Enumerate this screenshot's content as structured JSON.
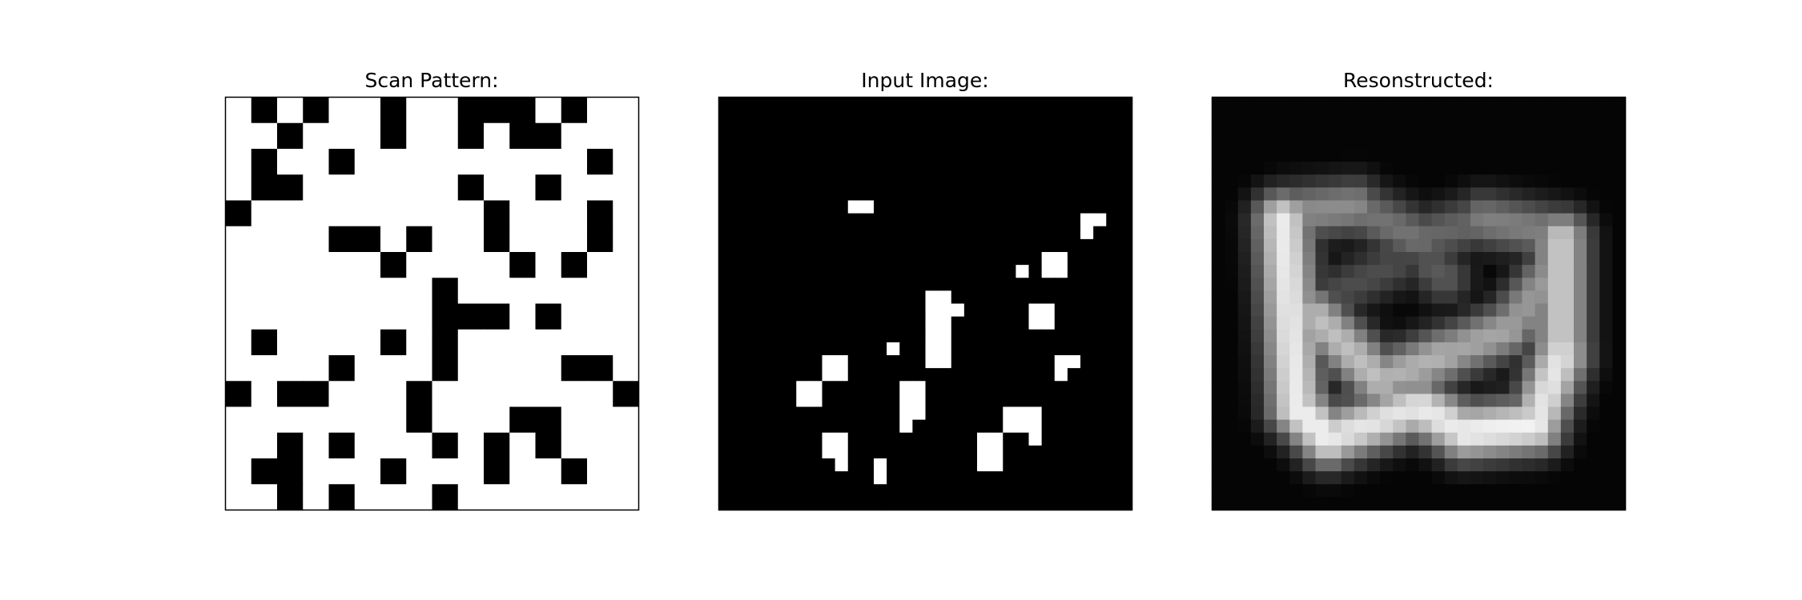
{
  "figure": {
    "background": "#ffffff"
  },
  "chart_data": [
    {
      "type": "heatmap",
      "title": "Scan Pattern:",
      "colormap": "gray",
      "grid": false,
      "axes": "hidden",
      "resolution": [
        16,
        16
      ],
      "on_value": 1,
      "off_value": 0,
      "cells": [
        [
          1,
          0,
          1,
          0,
          1,
          1,
          0,
          1,
          1,
          0,
          0,
          0,
          1,
          0,
          1,
          1
        ],
        [
          1,
          1,
          0,
          1,
          1,
          1,
          0,
          1,
          1,
          0,
          1,
          0,
          0,
          1,
          1,
          1
        ],
        [
          1,
          0,
          1,
          1,
          0,
          1,
          1,
          1,
          1,
          1,
          1,
          1,
          1,
          1,
          0,
          1
        ],
        [
          1,
          0,
          0,
          1,
          1,
          1,
          1,
          1,
          1,
          0,
          1,
          1,
          0,
          1,
          1,
          1
        ],
        [
          0,
          1,
          1,
          1,
          1,
          1,
          1,
          1,
          1,
          1,
          0,
          1,
          1,
          1,
          0,
          1
        ],
        [
          1,
          1,
          1,
          1,
          0,
          0,
          1,
          0,
          1,
          1,
          0,
          1,
          1,
          1,
          0,
          1
        ],
        [
          1,
          1,
          1,
          1,
          1,
          1,
          0,
          1,
          1,
          1,
          1,
          0,
          1,
          0,
          1,
          1
        ],
        [
          1,
          1,
          1,
          1,
          1,
          1,
          1,
          1,
          0,
          1,
          1,
          1,
          1,
          1,
          1,
          1
        ],
        [
          1,
          1,
          1,
          1,
          1,
          1,
          1,
          1,
          0,
          0,
          0,
          1,
          0,
          1,
          1,
          1
        ],
        [
          1,
          0,
          1,
          1,
          1,
          1,
          0,
          1,
          0,
          1,
          1,
          1,
          1,
          1,
          1,
          1
        ],
        [
          1,
          1,
          1,
          1,
          0,
          1,
          1,
          1,
          0,
          1,
          1,
          1,
          1,
          0,
          0,
          1
        ],
        [
          0,
          1,
          0,
          0,
          1,
          1,
          1,
          0,
          1,
          1,
          1,
          1,
          1,
          1,
          1,
          0
        ],
        [
          1,
          1,
          1,
          1,
          1,
          1,
          1,
          0,
          1,
          1,
          1,
          0,
          0,
          1,
          1,
          1
        ],
        [
          1,
          1,
          0,
          1,
          0,
          1,
          1,
          1,
          0,
          1,
          0,
          1,
          0,
          1,
          1,
          1
        ],
        [
          1,
          0,
          0,
          1,
          1,
          1,
          0,
          1,
          1,
          1,
          0,
          1,
          1,
          0,
          1,
          1
        ],
        [
          1,
          1,
          0,
          1,
          0,
          1,
          1,
          1,
          0,
          1,
          1,
          1,
          1,
          1,
          1,
          1
        ]
      ]
    },
    {
      "type": "heatmap",
      "title": "Input Image:",
      "colormap": "gray",
      "grid": false,
      "axes": "hidden",
      "resolution": [
        32,
        32
      ],
      "background_value": 0,
      "on_value": 1,
      "bright_cells": [
        [
          10,
          8
        ],
        [
          11,
          8
        ],
        [
          9,
          28
        ],
        [
          28,
          9
        ],
        [
          29,
          9
        ],
        [
          28,
          10
        ],
        [
          23,
          13
        ],
        [
          26,
          12
        ],
        [
          26,
          13
        ],
        [
          25,
          12
        ],
        [
          25,
          13
        ],
        [
          16,
          15
        ],
        [
          17,
          15
        ],
        [
          16,
          16
        ],
        [
          17,
          16
        ],
        [
          18,
          16
        ],
        [
          16,
          17
        ],
        [
          17,
          17
        ],
        [
          16,
          18
        ],
        [
          17,
          18
        ],
        [
          16,
          19
        ],
        [
          17,
          19
        ],
        [
          16,
          20
        ],
        [
          17,
          20
        ],
        [
          24,
          16
        ],
        [
          25,
          16
        ],
        [
          24,
          17
        ],
        [
          25,
          17
        ],
        [
          13,
          19
        ],
        [
          26,
          20
        ],
        [
          27,
          20
        ],
        [
          26,
          21
        ],
        [
          8,
          20
        ],
        [
          9,
          20
        ],
        [
          8,
          21
        ],
        [
          9,
          21
        ],
        [
          14,
          22
        ],
        [
          15,
          22
        ],
        [
          14,
          23
        ],
        [
          15,
          23
        ],
        [
          14,
          24
        ],
        [
          15,
          24
        ],
        [
          14,
          25
        ],
        [
          6,
          22
        ],
        [
          7,
          22
        ],
        [
          6,
          23
        ],
        [
          7,
          23
        ],
        [
          22,
          24
        ],
        [
          23,
          24
        ],
        [
          24,
          24
        ],
        [
          22,
          25
        ],
        [
          23,
          25
        ],
        [
          24,
          25
        ],
        [
          24,
          26
        ],
        [
          20,
          26
        ],
        [
          21,
          26
        ],
        [
          20,
          27
        ],
        [
          21,
          27
        ],
        [
          20,
          28
        ],
        [
          21,
          28
        ],
        [
          8,
          26
        ],
        [
          9,
          26
        ],
        [
          8,
          27
        ],
        [
          9,
          27
        ],
        [
          12,
          28
        ],
        [
          12,
          29
        ]
      ]
    },
    {
      "type": "heatmap",
      "title": "Resonstructed:",
      "colormap": "gray",
      "grid": false,
      "axes": "hidden",
      "resolution": [
        32,
        32
      ],
      "background_value": 0,
      "shape": "W-shaped bright reconstruction on dark background",
      "strokes": [
        {
          "from": [
            5.5,
            9.5
          ],
          "to": [
            6.5,
            24.0
          ],
          "value": 0.92
        },
        {
          "from": [
            6.5,
            24.0
          ],
          "to": [
            9.0,
            26.5
          ],
          "value": 0.95
        },
        {
          "from": [
            9.0,
            26.5
          ],
          "to": [
            16.0,
            24.0
          ],
          "value": 0.9
        },
        {
          "from": [
            16.0,
            24.0
          ],
          "to": [
            19.5,
            26.0
          ],
          "value": 0.92
        },
        {
          "from": [
            19.5,
            26.0
          ],
          "to": [
            25.0,
            25.5
          ],
          "value": 0.95
        },
        {
          "from": [
            25.0,
            25.5
          ],
          "to": [
            27.0,
            20.0
          ],
          "value": 0.9
        },
        {
          "from": [
            27.0,
            20.0
          ],
          "to": [
            27.0,
            11.0
          ],
          "value": 0.8
        },
        {
          "from": [
            6.0,
            9.0
          ],
          "to": [
            11.0,
            8.5
          ],
          "value": 0.55
        },
        {
          "from": [
            11.0,
            8.5
          ],
          "to": [
            16.0,
            11.0
          ],
          "value": 0.45
        },
        {
          "from": [
            16.0,
            11.0
          ],
          "to": [
            21.0,
            9.5
          ],
          "value": 0.4
        },
        {
          "from": [
            21.0,
            9.5
          ],
          "to": [
            26.5,
            10.5
          ],
          "value": 0.5
        },
        {
          "from": [
            8.0,
            17.0
          ],
          "to": [
            13.0,
            22.0
          ],
          "value": 0.75
        },
        {
          "from": [
            13.0,
            22.0
          ],
          "to": [
            18.0,
            20.0
          ],
          "value": 0.7
        },
        {
          "from": [
            18.0,
            20.0
          ],
          "to": [
            23.0,
            18.0
          ],
          "value": 0.65
        },
        {
          "from": [
            23.0,
            18.0
          ],
          "to": [
            26.0,
            14.0
          ],
          "value": 0.6
        },
        {
          "from": [
            10.0,
            15.0
          ],
          "to": [
            14.0,
            13.0
          ],
          "value": 0.3
        },
        {
          "from": [
            17.0,
            13.0
          ],
          "to": [
            18.0,
            14.0
          ],
          "value": 0.35
        }
      ]
    }
  ]
}
